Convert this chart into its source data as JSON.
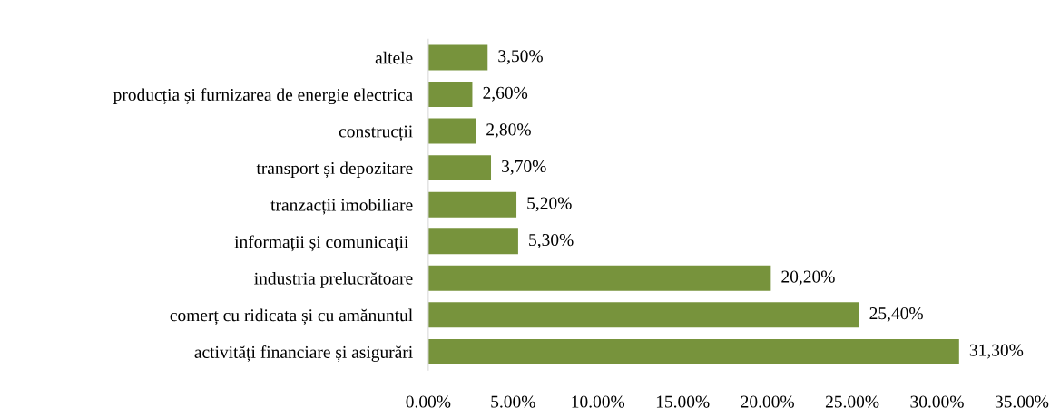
{
  "chart_data": {
    "type": "bar",
    "orientation": "horizontal",
    "categories": [
      "altele",
      "producția și furnizarea de energie electrica",
      "construcții",
      "transport și depozitare",
      "tranzacții imobiliare",
      "informații și comunicații ",
      "industria prelucrătoare",
      "comerț cu ridicata și cu amănuntul",
      "activități financiare și asigurări"
    ],
    "values": [
      3.5,
      2.6,
      2.8,
      3.7,
      5.2,
      5.3,
      20.2,
      25.4,
      31.3
    ],
    "value_labels": [
      "3,50%",
      "2,60%",
      "2,80%",
      "3,70%",
      "5,20%",
      "5,30%",
      "20,20%",
      "25,40%",
      "31,30%"
    ],
    "color": "#77933c",
    "xlim": [
      0,
      35
    ],
    "xticks": [
      {
        "value": 0,
        "label": "0.00%"
      },
      {
        "value": 5,
        "label": "5.00%"
      },
      {
        "value": 10,
        "label": "10.00%"
      },
      {
        "value": 15,
        "label": "15.00%"
      },
      {
        "value": 20,
        "label": "20.00%"
      },
      {
        "value": 25,
        "label": "25.00%"
      },
      {
        "value": 30,
        "label": "30.00%"
      },
      {
        "value": 35,
        "label": "35.00%"
      }
    ],
    "grid": false,
    "legend": false
  }
}
